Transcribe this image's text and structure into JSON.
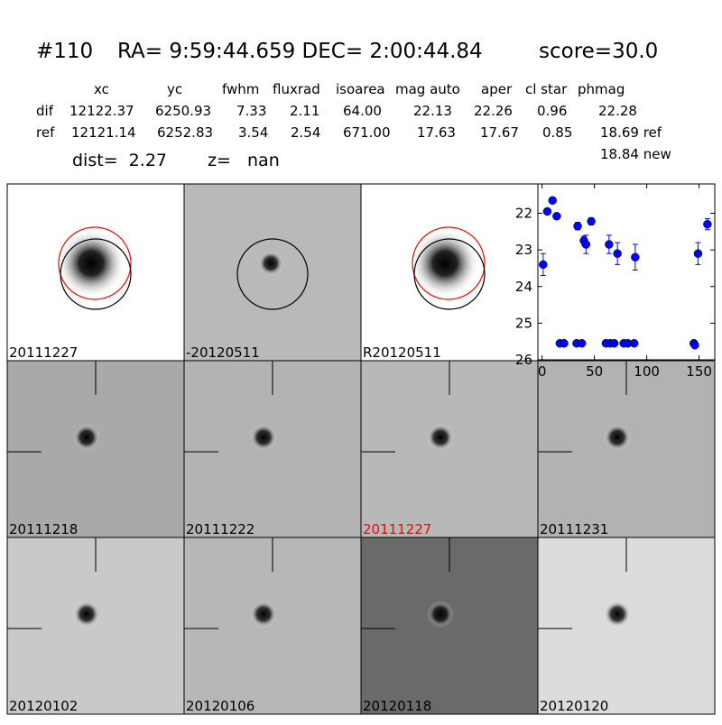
{
  "header": {
    "id": "#110",
    "coords": "RA= 9:59:44.659 DEC= 2:00:44.84",
    "score": "score=30.0"
  },
  "table": {
    "columns": [
      "xc",
      "yc",
      "fwhm",
      "fluxrad",
      "isoarea",
      "mag auto",
      "aper",
      "cl star",
      "phmag"
    ],
    "rows": [
      [
        "dif",
        "12122.37",
        "6250.93",
        "7.33",
        "2.11",
        "64.00",
        "22.13",
        "22.26",
        "0.96",
        "22.28"
      ],
      [
        "ref",
        "12121.14",
        "6252.83",
        "3.54",
        "2.54",
        "671.00",
        "17.63",
        "17.67",
        "0.85",
        "18.69 ref"
      ]
    ],
    "extra": "18.84 new"
  },
  "dist": "dist=  2.27",
  "z": "z=   nan",
  "stamps": [
    {
      "label": "20111227"
    },
    {
      "label": "-20120511"
    },
    {
      "label": "R20120511"
    },
    {
      "label": "20111218"
    },
    {
      "label": "20111222"
    },
    {
      "label": "20111227",
      "color": "#ff0000"
    },
    {
      "label": "20111231"
    },
    {
      "label": "20120102"
    },
    {
      "label": "20120106"
    },
    {
      "label": "20120118"
    },
    {
      "label": "20120120"
    }
  ],
  "chart_data": {
    "type": "scatter",
    "color": "#0000ff",
    "y_inverted": true,
    "x": [
      1,
      5,
      10,
      14,
      17,
      21,
      33,
      34,
      38,
      40,
      42,
      47,
      61,
      64,
      65,
      69,
      72,
      78,
      82,
      88,
      89,
      145,
      146,
      149,
      158
    ],
    "values": [
      23.4,
      21.95,
      21.65,
      22.08,
      25.55,
      25.55,
      25.55,
      22.35,
      25.55,
      22.75,
      22.85,
      22.22,
      25.55,
      22.85,
      25.55,
      25.55,
      23.1,
      25.55,
      25.55,
      25.55,
      23.2,
      25.55,
      25.6,
      23.1,
      22.3
    ],
    "errors": [
      0.3,
      0.05,
      0.05,
      0.07,
      null,
      null,
      null,
      0.1,
      null,
      0.12,
      0.25,
      0.1,
      null,
      0.25,
      null,
      null,
      0.3,
      null,
      null,
      null,
      0.35,
      null,
      null,
      0.3,
      0.15
    ],
    "xlim": [
      -4,
      165
    ],
    "ylim": [
      21.2,
      26
    ],
    "xticks": [
      0,
      50,
      100,
      150
    ],
    "yticks": [
      22,
      23,
      24,
      25,
      26
    ]
  }
}
